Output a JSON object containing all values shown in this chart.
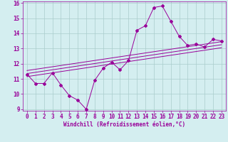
{
  "xlabel": "Windchill (Refroidissement éolien,°C)",
  "bg_color": "#d4eef0",
  "line_color": "#990099",
  "grid_color": "#aacccc",
  "x_hours": [
    0,
    1,
    2,
    3,
    4,
    5,
    6,
    7,
    8,
    9,
    10,
    11,
    12,
    13,
    14,
    15,
    16,
    17,
    18,
    19,
    20,
    21,
    22,
    23
  ],
  "temp_line": [
    11.3,
    10.7,
    10.7,
    11.4,
    10.6,
    9.9,
    9.6,
    9.0,
    10.9,
    11.7,
    12.1,
    11.6,
    12.2,
    14.2,
    14.5,
    15.7,
    15.8,
    14.8,
    13.8,
    13.2,
    13.3,
    13.1,
    13.6,
    13.5
  ],
  "reg_line1_x": [
    0,
    23
  ],
  "reg_line1_y": [
    11.15,
    13.05
  ],
  "reg_line2_x": [
    0,
    23
  ],
  "reg_line2_y": [
    11.55,
    13.45
  ],
  "reg_line3_x": [
    0,
    23
  ],
  "reg_line3_y": [
    11.35,
    13.25
  ],
  "ylim": [
    8.9,
    16.1
  ],
  "xlim": [
    -0.5,
    23.5
  ],
  "yticks": [
    9,
    10,
    11,
    12,
    13,
    14,
    15,
    16
  ],
  "xticks": [
    0,
    1,
    2,
    3,
    4,
    5,
    6,
    7,
    8,
    9,
    10,
    11,
    12,
    13,
    14,
    15,
    16,
    17,
    18,
    19,
    20,
    21,
    22,
    23
  ],
  "tick_fontsize": 5.5,
  "xlabel_fontsize": 5.5
}
